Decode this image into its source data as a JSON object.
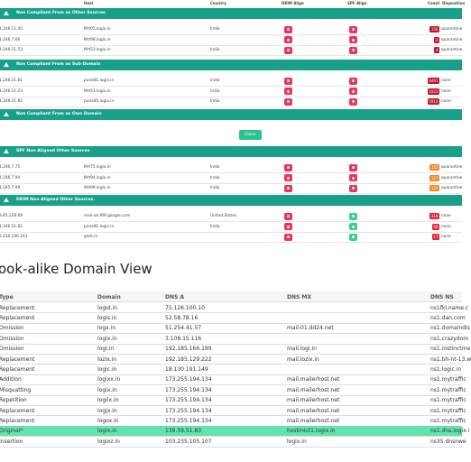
{
  "alerts": {
    "columns": [
      "Host",
      "Country",
      "DKIM Align",
      "SPF Align",
      "Count",
      "Disposition"
    ],
    "close": "Close",
    "sections": [
      {
        "title": "Non Compliant From as Other Sources",
        "count_color": "#c0142b",
        "rows": [
          {
            "ip": "1.246.11.45",
            "host": "Mrt05.logix.in",
            "country": "India",
            "dkim": "#e8365d",
            "spf": "#e8365d",
            "count": "156",
            "disposition": "quarantine"
          },
          {
            "ip": "1.246.7.66",
            "host": "Mrt98.logix.in",
            "country": "",
            "dkim": "#e8365d",
            "spf": "#e8365d",
            "count": "8",
            "disposition": "quarantine"
          },
          {
            "ip": "1.246.11.53",
            "host": "Mrt53.logix.in",
            "country": "India",
            "dkim": "#e8365d",
            "spf": "#e8365d",
            "count": "4",
            "disposition": "quarantine"
          }
        ]
      },
      {
        "title": "Non Compliant From as Sub-Domain",
        "count_color": "#c0142b",
        "rows": [
          {
            "ip": "1.246.21.81",
            "host": "pune81.logix.in",
            "country": "India",
            "dkim": "#e8365d",
            "spf": "#e8365d",
            "count": "6491",
            "disposition": "none"
          },
          {
            "ip": "1.246.11.23",
            "host": "Mrt53.logix.in",
            "country": "India",
            "dkim": "#e8365d",
            "spf": "#e8365d",
            "count": "1023",
            "disposition": "none"
          },
          {
            "ip": "1.246.21.85",
            "host": "pune85.logix.in",
            "country": "India",
            "dkim": "#e8365d",
            "spf": "#e8365d",
            "count": "5914",
            "disposition": "none"
          }
        ]
      },
      {
        "title": "Non Compliant From as Own Domain",
        "count_color": "#c0142b",
        "rows": []
      },
      {
        "title": "SPF Non Aligned Other Sources",
        "count_color": "#f08a24",
        "rows": [
          {
            "ip": "1.246.7.75",
            "host": "Mrt75.logix.in",
            "country": "India",
            "dkim": "#e8365d",
            "spf": "#e8365d",
            "count": "155",
            "disposition": "quarantine"
          },
          {
            "ip": "1.246.7.94",
            "host": "Mrt94.logix.in",
            "country": "India",
            "dkim": "#e8365d",
            "spf": "#e8365d",
            "count": "127",
            "disposition": "quarantine"
          },
          {
            "ip": "1.245.7.99",
            "host": "Mrt99.logix.in",
            "country": "India",
            "dkim": "#e8365d",
            "spf": "#e8365d",
            "count": "120",
            "disposition": "quarantine"
          }
        ]
      },
      {
        "title": "DKIM Non Aligned Other Sources.",
        "count_color": "#e8223a",
        "rows": [
          {
            "ip": "9.85.228.69",
            "host": "mail-oo-f69.google.com",
            "country": "United States",
            "dkim": "#e8365d",
            "spf": "#3ccf8e",
            "count": "316",
            "disposition": "none"
          },
          {
            "ip": "1.246.21.81",
            "host": "pune81.logix.in",
            "country": "India",
            "dkim": "#e8365d",
            "spf": "#3ccf8e",
            "count": "56",
            "disposition": "none"
          },
          {
            "ip": "5.230.246.243",
            "host": "greit.in",
            "country": "",
            "dkim": "#e8365d",
            "spf": "#3ccf8e",
            "count": "17",
            "disposition": "none"
          }
        ]
      }
    ]
  },
  "lookalike": {
    "title": "ook-alike Domain View",
    "columns": [
      "Type",
      "Domain",
      "DNS A",
      "DNS MX",
      "DNS NS"
    ],
    "highlight": {
      "row": 12,
      "color": "#62e3b0"
    },
    "rows": [
      [
        "Replacement",
        "logid.in",
        "75.126.100.10",
        "",
        "ns1fkl.name.c"
      ],
      [
        "Replacement",
        "logis.in",
        "52.58.78.16",
        "",
        "ns1.dan.com"
      ],
      [
        "Omission",
        "logx.in",
        "51.254.41.57",
        "mail-01.dd24.net",
        "ns1.domaindis"
      ],
      [
        "Omission",
        "logix.in",
        "3.108.15.116",
        "",
        "ns1.crazydom"
      ],
      [
        "Omission",
        "logi.in",
        "192.185.166.199",
        "mail.logi.in",
        "ns1.instinctme"
      ],
      [
        "Replacement",
        "lozix.in",
        "192.185.129.222",
        "mail.lozix.in",
        "ns1.bh-nt-13.w"
      ],
      [
        "Replacement",
        "logic.in",
        "18.130.191.149",
        "",
        "ns1.logic.in"
      ],
      [
        "Addition",
        "logixx.in",
        "173.255.194.134",
        "mail.mailerhost.net",
        "ns1.mytraffic"
      ],
      [
        "Misquatting",
        "logix.in",
        "173.255.194.134",
        "mail.mailerhost.net",
        "ns1.mytraffic"
      ],
      [
        "Repetition",
        "logiix.in",
        "173.255.194.134",
        "mail.mailerhost.net",
        "ns1.mytraffic"
      ],
      [
        "Replacement",
        "logjx.in",
        "173.255.194.134",
        "mail.mailerhost.net",
        "ns1.mytraffic"
      ],
      [
        "Replacement",
        "logox.in",
        "173.255.194.134",
        "mail.mailerhost.net",
        "ns1.mytraffic"
      ],
      [
        "Original*",
        "logix.in",
        "139.59.51.83",
        "hostmict1.logix.in",
        "ns1.dns.logix.i"
      ],
      [
        "Insertion",
        "logixz.in",
        "103.235.105.107",
        "logix.in",
        "ns35.dnsnwe"
      ]
    ]
  }
}
